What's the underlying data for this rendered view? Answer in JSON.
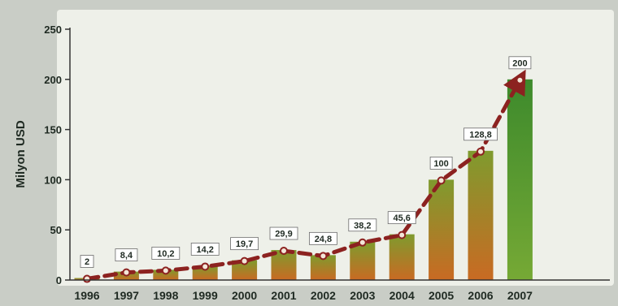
{
  "chart_data": {
    "type": "bar",
    "title": "",
    "xlabel": "",
    "ylabel": "Milyon USD",
    "ylim": [
      0,
      250
    ],
    "yticks": [
      0,
      50,
      100,
      150,
      200,
      250
    ],
    "categories": [
      "1996",
      "1997",
      "1998",
      "1999",
      "2000",
      "2001",
      "2002",
      "2003",
      "2004",
      "2005",
      "2006",
      "2007"
    ],
    "values": [
      2,
      8.4,
      10.2,
      14.2,
      19.7,
      29.9,
      24.8,
      38.2,
      45.6,
      100,
      128.8,
      200
    ],
    "data_labels": [
      "2",
      "8,4",
      "10,2",
      "14,2",
      "19,7",
      "29,9",
      "24,8",
      "38,2",
      "45,6",
      "100",
      "128,8",
      "200"
    ],
    "trend_line": true,
    "grid": false,
    "colors": {
      "plot_background": "#eef0e9",
      "bar_top": "#7f9b2e",
      "bar_bottom": "#c96a23",
      "bar_last_top": "#3d8a2c",
      "bar_last_bottom": "#76a935",
      "trend": "#8c2220",
      "label_box": "#ffffff"
    }
  }
}
